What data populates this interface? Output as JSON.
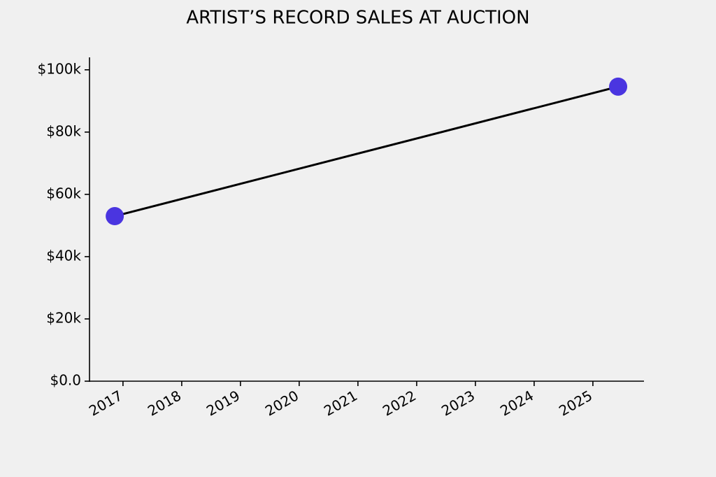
{
  "chart_data": {
    "type": "line",
    "title": "ARTIST’S RECORD SALES AT AUCTION",
    "x": [
      2016.86,
      2025.43
    ],
    "series": [
      {
        "values": [
          53000,
          94600
        ],
        "color": "#000000",
        "marker_color": "#4a35e0"
      }
    ],
    "xlim": [
      2016.43,
      2025.87
    ],
    "xticks": [
      2017,
      2018,
      2019,
      2020,
      2021,
      2022,
      2023,
      2024,
      2025
    ],
    "ylim": [
      0,
      104000
    ],
    "yticks": [
      {
        "value": 0,
        "label": "$0.0"
      },
      {
        "value": 20000,
        "label": "$20k"
      },
      {
        "value": 40000,
        "label": "$40k"
      },
      {
        "value": 60000,
        "label": "$60k"
      },
      {
        "value": 80000,
        "label": "$80k"
      },
      {
        "value": 100000,
        "label": "$100k"
      }
    ],
    "grid": false
  }
}
